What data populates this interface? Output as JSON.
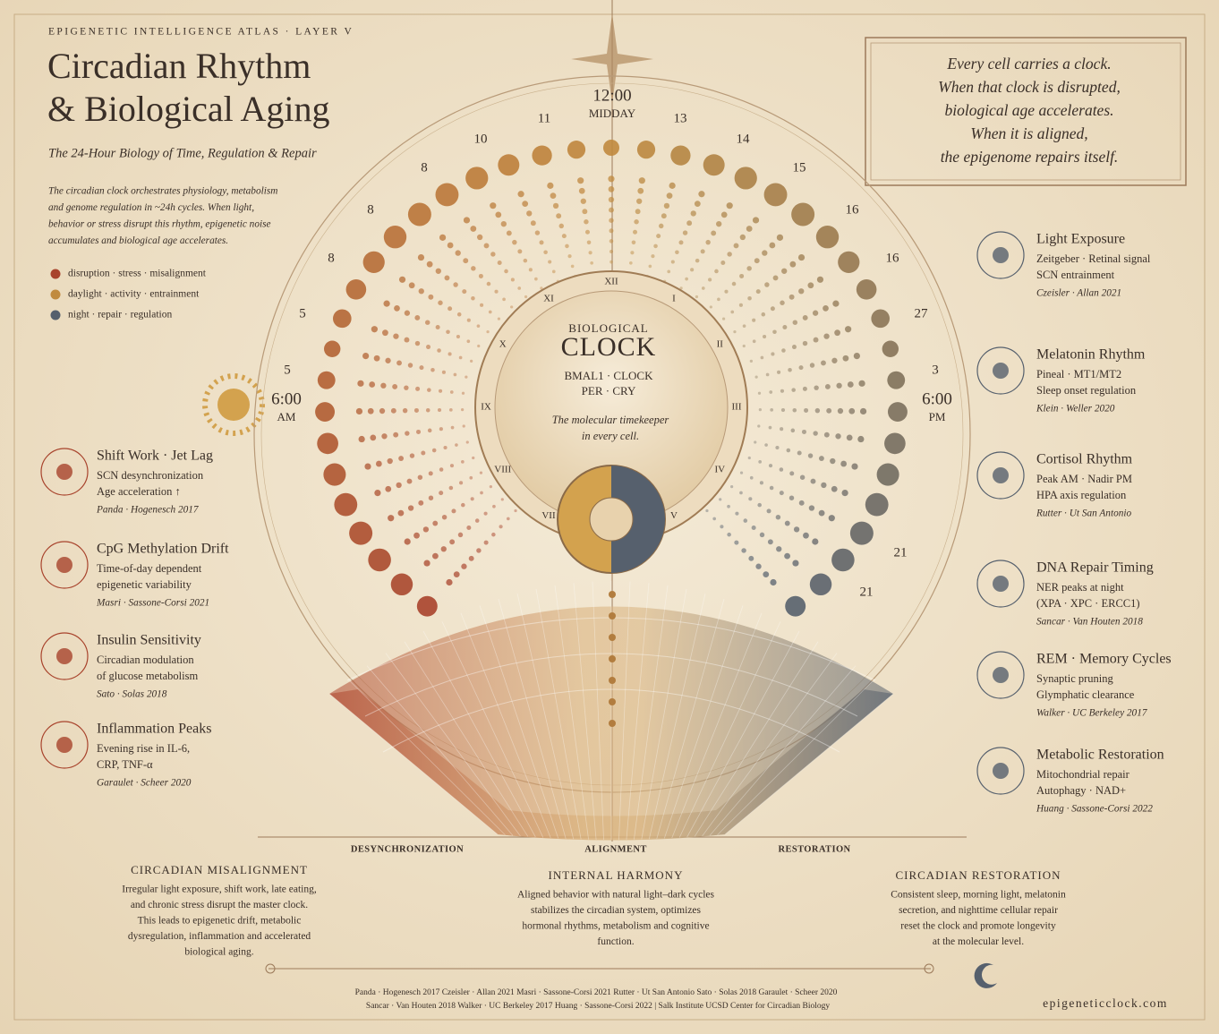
{
  "header": {
    "kicker": "EPIGENETIC INTELLIGENCE ATLAS · LAYER V",
    "title": [
      "Circadian Rhythm",
      "& Biological Aging"
    ],
    "subtitle": "The 24-Hour Biology of Time, Regulation & Repair",
    "intro": [
      "The circadian clock orchestrates physiology, metabolism",
      "and genome regulation in ~24h cycles. When light,",
      "behavior or stress disrupt this rhythm, epigenetic noise",
      "accumulates and biological age accelerates."
    ]
  },
  "legend": [
    {
      "label": "disruption · stress · misalignment",
      "color": "#a8432c"
    },
    {
      "label": "daylight · activity · entrainment",
      "color": "#c08a3e"
    },
    {
      "label": "night · repair · regulation",
      "color": "#56606d"
    }
  ],
  "quote": [
    "Every cell carries a clock.",
    "When that clock is disrupted,",
    "biological age accelerates.",
    "When it is aligned,",
    "the epigenome repairs itself."
  ],
  "clock": {
    "noon": "12:00",
    "noon_label": "MIDDAY",
    "left_time": "6:00",
    "left_label": "AM",
    "right_time": "6:00",
    "right_label": "PM",
    "hours": [
      "11",
      "13",
      "10",
      "14",
      "8",
      "15",
      "8",
      "16",
      "8",
      "16",
      "5",
      "27",
      "5",
      "3",
      "21",
      "21"
    ],
    "numerals": [
      "XII",
      "I",
      "II",
      "III",
      "IV",
      "V",
      "VII",
      "VIII",
      "IX",
      "X",
      "XI"
    ],
    "center": {
      "kicker": "BIOLOGICAL",
      "title": "CLOCK",
      "genes": [
        "BMAL1 · CLOCK",
        "PER · CRY"
      ],
      "caption": [
        "The molecular timekeeper",
        "in every cell."
      ]
    }
  },
  "left_cards": [
    {
      "title": "Shift Work · Jet Lag",
      "lines": [
        "SCN desynchronization",
        "Age acceleration ↑"
      ],
      "citation": "Panda · Hogenesch 2017"
    },
    {
      "title": "CpG Methylation Drift",
      "lines": [
        "Time-of-day dependent",
        "epigenetic variability"
      ],
      "citation": "Masri · Sassone-Corsi 2021"
    },
    {
      "title": "Insulin Sensitivity",
      "lines": [
        "Circadian modulation",
        "of glucose metabolism"
      ],
      "citation": "Sato · Solas 2018"
    },
    {
      "title": "Inflammation Peaks",
      "lines": [
        "Evening rise in IL-6,",
        "CRP, TNF-α"
      ],
      "citation": "Garaulet · Scheer 2020"
    }
  ],
  "right_cards": [
    {
      "title": "Light Exposure",
      "lines": [
        "Zeitgeber · Retinal signal",
        "SCN entrainment"
      ],
      "citation": "Czeisler · Allan 2021"
    },
    {
      "title": "Melatonin Rhythm",
      "lines": [
        "Pineal · MT1/MT2",
        "Sleep onset regulation"
      ],
      "citation": "Klein · Weller 2020"
    },
    {
      "title": "Cortisol Rhythm",
      "lines": [
        "Peak AM · Nadir PM",
        "HPA axis regulation"
      ],
      "citation": "Rutter · Ut San Antonio"
    },
    {
      "title": "DNA Repair Timing",
      "lines": [
        "NER peaks at night",
        "(XPA · XPC · ERCC1)"
      ],
      "citation": "Sancar · Van Houten 2018"
    },
    {
      "title": "REM · Memory Cycles",
      "lines": [
        "Synaptic pruning",
        "Glymphatic clearance"
      ],
      "citation": "Walker · UC Berkeley 2017"
    },
    {
      "title": "Metabolic Restoration",
      "lines": [
        "Mitochondrial repair",
        "Autophagy · NAD+"
      ],
      "citation": "Huang · Sassone-Corsi 2022"
    }
  ],
  "axis_labels": [
    "DESYNCHRONIZATION",
    "ALIGNMENT",
    "RESTORATION"
  ],
  "sections": [
    {
      "title": "CIRCADIAN MISALIGNMENT",
      "lines": [
        "Irregular light exposure, shift work, late eating,",
        "and chronic stress disrupt the master clock.",
        "This leads to epigenetic drift, metabolic",
        "dysregulation, inflammation and accelerated",
        "biological aging."
      ]
    },
    {
      "title": "INTERNAL HARMONY",
      "lines": [
        "Aligned behavior with natural light–dark cycles",
        "stabilizes the circadian system, optimizes",
        "hormonal rhythms, metabolism and cognitive",
        "function."
      ]
    },
    {
      "title": "CIRCADIAN RESTORATION",
      "lines": [
        "Consistent sleep, morning light, melatonin",
        "secretion, and nighttime cellular repair",
        "reset the clock and promote longevity",
        "at the molecular level."
      ]
    }
  ],
  "footer": {
    "references": [
      "Panda · Hogenesch 2017    Czeisler · Allan 2021    Masri · Sassone-Corsi 2021    Rutter · Ut San Antonio    Sato · Solas 2018    Garaulet · Scheer 2020",
      "Sancar · Van Houten 2018    Walker · UC Berkeley 2017    Huang · Sassone-Corsi 2022   |   Salk Institute    UCSD Center for Circadian Biology"
    ],
    "site": "epigeneticclock.com"
  }
}
